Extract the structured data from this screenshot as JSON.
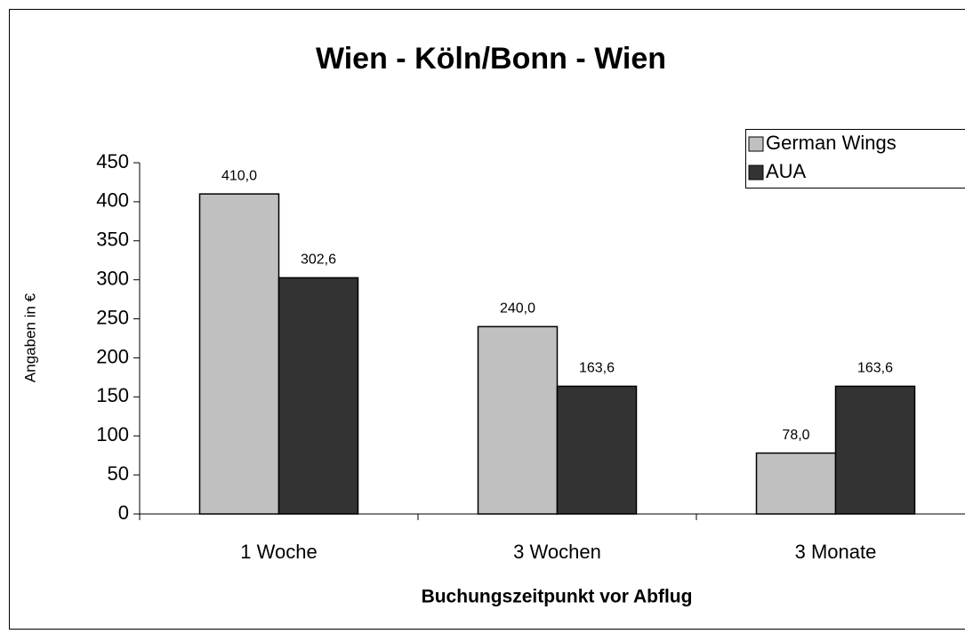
{
  "chart_data": {
    "type": "bar",
    "title": "Wien - Köln/Bonn - Wien",
    "x_label": "Buchungszeitpunkt vor Abflug",
    "y_label": "Angaben in €",
    "categories": [
      "1 Woche",
      "3 Wochen",
      "3 Monate"
    ],
    "series": [
      {
        "name": "German Wings",
        "color": "#c0c0c0",
        "values": [
          410.0,
          240.0,
          78.0
        ],
        "value_labels": [
          "410,0",
          "240,0",
          "78,0"
        ]
      },
      {
        "name": "AUA",
        "color": "#333333",
        "values": [
          302.6,
          163.6,
          163.6
        ],
        "value_labels": [
          "302,6",
          "163,6",
          "163,6"
        ]
      }
    ],
    "ylim": [
      0,
      450
    ],
    "yticks": [
      0,
      50,
      100,
      150,
      200,
      250,
      300,
      350,
      400,
      450
    ],
    "grid": false,
    "legend": "top-right"
  }
}
